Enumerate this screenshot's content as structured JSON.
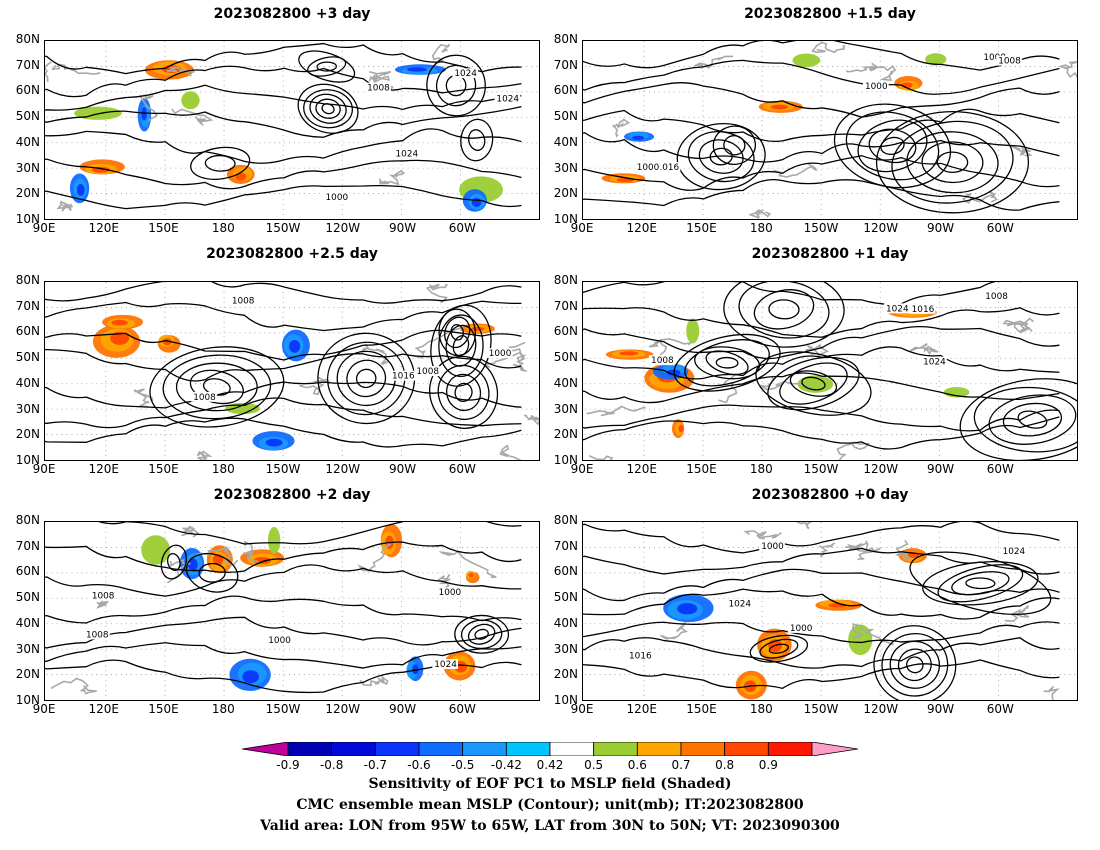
{
  "panels": [
    {
      "title": "2023082800  +3 day",
      "col": 0,
      "row": 0
    },
    {
      "title": "2023082800  +1.5 day",
      "col": 1,
      "row": 0
    },
    {
      "title": "2023082800  +2.5 day",
      "col": 0,
      "row": 1
    },
    {
      "title": "2023082800  +1 day",
      "col": 1,
      "row": 1
    },
    {
      "title": "2023082800  +2 day",
      "col": 0,
      "row": 2
    },
    {
      "title": "2023082800  +0 day",
      "col": 1,
      "row": 2
    }
  ],
  "lat_labels": [
    "80N",
    "70N",
    "60N",
    "50N",
    "40N",
    "30N",
    "20N",
    "10N"
  ],
  "lon_labels": [
    "90E",
    "120E",
    "150E",
    "180",
    "150W",
    "120W",
    "90W",
    "60W"
  ],
  "contour_labels": [
    "1008",
    "1016",
    "1024",
    "1000"
  ],
  "colorbar": {
    "ticks": [
      "-0.9",
      "-0.8",
      "-0.7",
      "-0.6",
      "-0.5",
      "-0.42",
      "0.42",
      "0.5",
      "0.6",
      "0.7",
      "0.8",
      "0.9"
    ],
    "colors": [
      "#c0009a",
      "#0000b4",
      "#0008dc",
      "#0b35ff",
      "#0f6cff",
      "#1a98ff",
      "#00c4ff",
      "#ffffff",
      "#9acd32",
      "#ffa500",
      "#ff7400",
      "#ff4800",
      "#ff1800",
      "#ff9dc8"
    ]
  },
  "footer": {
    "line1": "Sensitivity of EOF PC1 to MSLP field (Shaded)",
    "line2": "CMC ensemble mean MSLP (Contour); unit(mb); IT:2023082800",
    "line3": "Valid area: LON from 95W to 65W, LAT from 30N to 50N; VT: 2023090300"
  }
}
